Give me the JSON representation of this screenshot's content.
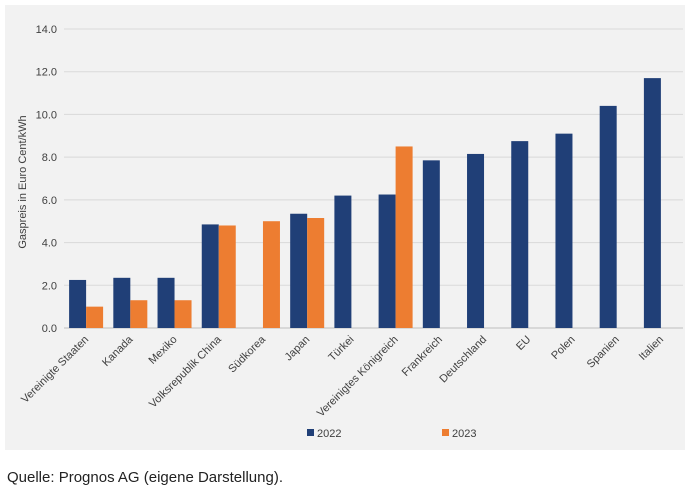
{
  "chart_data": {
    "type": "bar",
    "ylabel": "Gaspreis in Euro Cent/kWh",
    "ylim": [
      0,
      14
    ],
    "yticks": [
      "0.0",
      "2.0",
      "4.0",
      "6.0",
      "8.0",
      "10.0",
      "12.0",
      "14.0"
    ],
    "grid": true,
    "legend_position": "bottom",
    "categories": [
      "Vereinigte Staaten",
      "Kanada",
      "Mexiko",
      "Volksrepublik China",
      "Südkorea",
      "Japan",
      "Türkei",
      "Vereinigtes Königreich",
      "Frankreich",
      "Deutschland",
      "EU",
      "Polen",
      "Spanien",
      "Italien"
    ],
    "series": [
      {
        "name": "2022",
        "color": "#203f77",
        "values": [
          2.25,
          2.35,
          2.35,
          4.85,
          null,
          5.35,
          6.2,
          6.25,
          7.85,
          8.15,
          8.75,
          9.1,
          10.4,
          11.7
        ]
      },
      {
        "name": "2023",
        "color": "#ed7d31",
        "values": [
          1.0,
          1.3,
          1.3,
          4.8,
          5.0,
          5.15,
          null,
          8.5,
          null,
          null,
          null,
          null,
          null,
          null
        ]
      }
    ]
  },
  "caption": "Quelle: Prognos AG (eigene Darstellung)."
}
